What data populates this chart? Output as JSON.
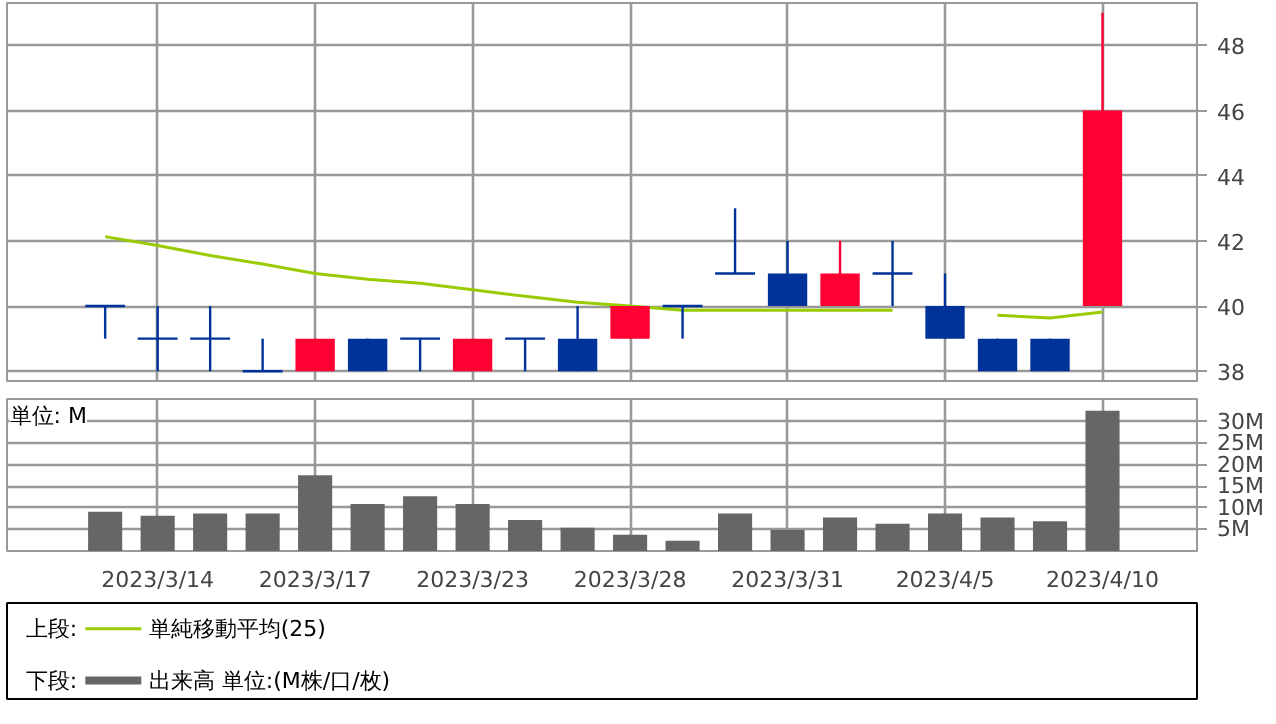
{
  "chart_data": [
    {
      "type": "candlestick",
      "categories": [
        null,
        "2023/3/14",
        null,
        null,
        "2023/3/17",
        null,
        null,
        "2023/3/23",
        null,
        null,
        "2023/3/28",
        null,
        null,
        "2023/3/31",
        null,
        null,
        "2023/4/5",
        null,
        null,
        "2023/4/10"
      ],
      "ohlc": [
        [
          40,
          40,
          39,
          40
        ],
        [
          39,
          40,
          38,
          39
        ],
        [
          39,
          40,
          38,
          39
        ],
        [
          38,
          39,
          38,
          38
        ],
        [
          38,
          39,
          38,
          39
        ],
        [
          39,
          39,
          38,
          38
        ],
        [
          39,
          39,
          38,
          39
        ],
        [
          38,
          39,
          38,
          39
        ],
        [
          39,
          39,
          38,
          39
        ],
        [
          39,
          40,
          38,
          38
        ],
        [
          39,
          40,
          39,
          40
        ],
        [
          40,
          40,
          39,
          40
        ],
        [
          41,
          43,
          41,
          41
        ],
        [
          41,
          42,
          40,
          40
        ],
        [
          40,
          42,
          40,
          41
        ],
        [
          41,
          42,
          40,
          41
        ],
        [
          40,
          41,
          39,
          39
        ],
        [
          39,
          39,
          38,
          38
        ],
        [
          39,
          39,
          38,
          38
        ],
        [
          40,
          49,
          40,
          46
        ]
      ],
      "colors": [
        "#003399",
        "#003399",
        "#003399",
        "#003399",
        "#ff0033",
        "#003399",
        "#003399",
        "#ff0033",
        "#003399",
        "#003399",
        "#ff0033",
        "#003399",
        "#003399",
        "#003399",
        "#ff0033",
        "#003399",
        "#003399",
        "#003399",
        "#003399",
        "#ff0033"
      ],
      "series": [
        {
          "name": "単純移動平均(25)",
          "type": "line",
          "color": "#99cc00",
          "values": [
            42.13,
            41.86,
            41.55,
            41.29,
            41.0,
            40.82,
            40.7,
            40.5,
            40.3,
            40.12,
            40.0,
            39.87,
            39.87,
            39.87,
            39.87,
            39.87,
            null,
            39.72,
            39.63,
            39.82
          ]
        }
      ],
      "ylim": [
        37.7,
        49.3
      ],
      "yticks": [
        38,
        40,
        42,
        44,
        46,
        48
      ],
      "grid": true,
      "tick_labels": "y",
      "legend": "bottom",
      "annotations": [
        "上段:"
      ]
    },
    {
      "type": "bar",
      "categories": [
        null,
        "2023/3/14",
        null,
        null,
        "2023/3/17",
        null,
        null,
        "2023/3/23",
        null,
        null,
        "2023/3/28",
        null,
        null,
        "2023/3/31",
        null,
        null,
        "2023/4/5",
        null,
        null,
        "2023/4/10"
      ],
      "series": [
        {
          "name": "出来高 単位:(M株/口/枚)",
          "color": "#666666",
          "values": [
            9.1,
            8.2,
            8.7,
            8.7,
            17.6,
            10.9,
            12.7,
            10.9,
            7.2,
            5.4,
            3.8,
            2.4,
            8.7,
            4.9,
            7.8,
            6.3,
            8.7,
            7.8,
            6.9,
            32.6
          ]
        }
      ],
      "ylim": [
        0,
        35.3
      ],
      "yticks": [
        {
          "value": 5,
          "label": "5M"
        },
        {
          "value": 10,
          "label": "10M"
        },
        {
          "value": 15,
          "label": "15M"
        },
        {
          "value": 20,
          "label": "20M"
        },
        {
          "value": 25,
          "label": "25M"
        },
        {
          "value": 30,
          "label": "30M"
        }
      ],
      "grid": true,
      "legend": "bottom",
      "annotations": [
        "単位: M",
        "下段:"
      ]
    }
  ]
}
